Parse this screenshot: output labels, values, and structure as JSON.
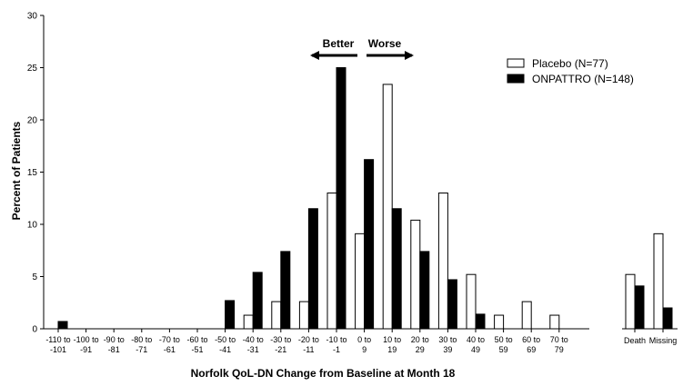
{
  "chart_data": {
    "type": "bar",
    "title": "",
    "xlabel": "Norfolk QoL-DN Change from Baseline at Month 18",
    "ylabel": "Percent of Patients",
    "ylim": [
      0,
      30
    ],
    "yticks": [
      0,
      5,
      10,
      15,
      20,
      25,
      30
    ],
    "grid": false,
    "legend_position": "top-right",
    "categories": [
      [
        "-110 to",
        "-101"
      ],
      [
        "-100 to",
        "-91"
      ],
      [
        "-90 to",
        "-81"
      ],
      [
        "-80 to",
        "-71"
      ],
      [
        "-70 to",
        "-61"
      ],
      [
        "-60 to",
        "-51"
      ],
      [
        "-50 to",
        "-41"
      ],
      [
        "-40 to",
        "-31"
      ],
      [
        "-30 to",
        "-21"
      ],
      [
        "-20 to",
        "-11"
      ],
      [
        "-10 to",
        "-1"
      ],
      [
        "0 to",
        "9"
      ],
      [
        "10 to",
        "19"
      ],
      [
        "20 to",
        "29"
      ],
      [
        "30 to",
        "39"
      ],
      [
        "40 to",
        "49"
      ],
      [
        "50 to",
        "59"
      ],
      [
        "60 to",
        "69"
      ],
      [
        "70 to",
        "79"
      ]
    ],
    "extra_categories": [
      "Death",
      "Missing"
    ],
    "series": [
      {
        "name": "Placebo (N=77)",
        "color": "#ffffff",
        "values": [
          0,
          0,
          0,
          0,
          0,
          0,
          0,
          1.3,
          2.6,
          2.6,
          13.0,
          9.1,
          23.4,
          10.4,
          13.0,
          5.2,
          1.3,
          2.6,
          1.3
        ],
        "extra_values": [
          5.2,
          9.1
        ]
      },
      {
        "name": "ONPATTRO (N=148)",
        "color": "#000000",
        "values": [
          0.7,
          0,
          0,
          0,
          0,
          0,
          2.7,
          5.4,
          7.4,
          11.5,
          25.0,
          16.2,
          11.5,
          7.4,
          4.7,
          1.4,
          0,
          0,
          0
        ],
        "extra_values": [
          4.1,
          2.0
        ]
      }
    ],
    "annotations": {
      "better": "Better",
      "worse": "Worse"
    }
  }
}
